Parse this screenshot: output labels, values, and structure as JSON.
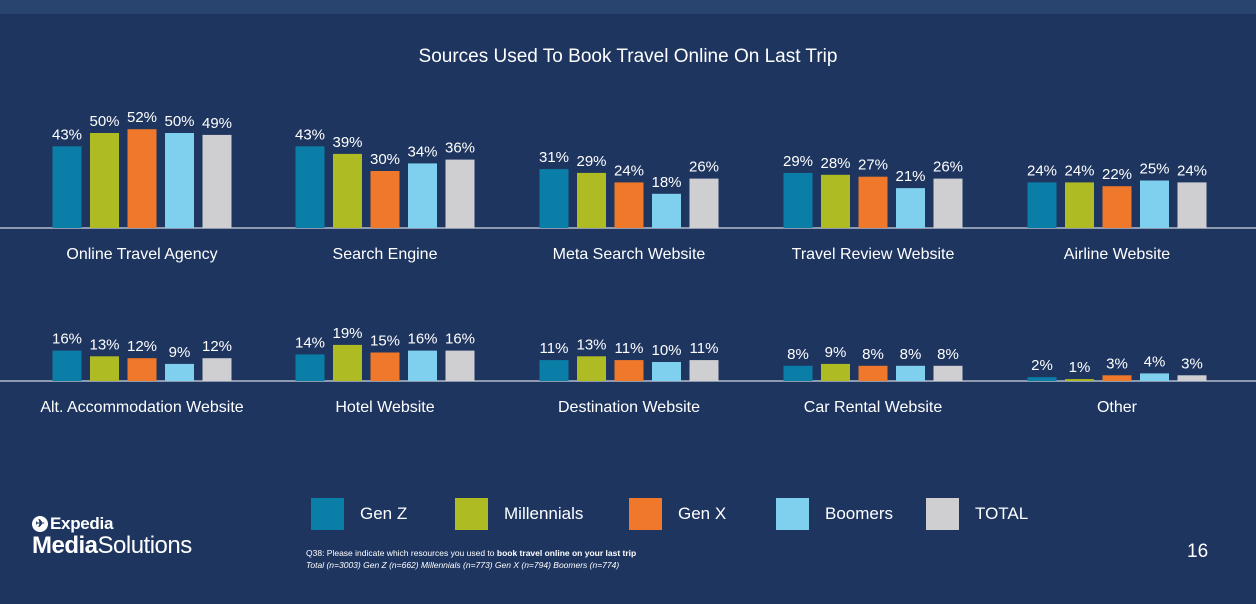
{
  "title": "Sources Used To Book Travel Online On Last Trip",
  "colors": {
    "background": "#1e3560",
    "Gen Z": "#0a7ea6",
    "Millennials": "#afbb22",
    "Gen X": "#f0782a",
    "Boomers": "#7fd0ef",
    "TOTAL": "#cfcfd1"
  },
  "legend": [
    "Gen Z",
    "Millennials",
    "Gen X",
    "Boomers",
    "TOTAL"
  ],
  "chart_data": {
    "type": "bar",
    "series_names": [
      "Gen Z",
      "Millennials",
      "Gen X",
      "Boomers",
      "TOTAL"
    ],
    "groups": [
      {
        "label": "Online Travel Agency",
        "values": [
          43,
          50,
          52,
          50,
          49
        ],
        "labels": [
          "43%",
          "50%",
          "52%",
          "50%",
          "49%"
        ]
      },
      {
        "label": "Search Engine",
        "values": [
          43,
          39,
          30,
          34,
          36
        ],
        "labels": [
          "43%",
          "39%",
          "30%",
          "34%",
          "36%"
        ]
      },
      {
        "label": "Meta Search Website",
        "values": [
          31,
          29,
          24,
          18,
          26
        ],
        "labels": [
          "31%",
          "29%",
          "24%",
          "18%",
          "26%"
        ]
      },
      {
        "label": "Travel Review Website",
        "values": [
          29,
          28,
          27,
          21,
          26
        ],
        "labels": [
          "29%",
          "28%",
          "27%",
          "21%",
          "26%"
        ]
      },
      {
        "label": "Airline Website",
        "values": [
          24,
          24,
          22,
          25,
          24
        ],
        "labels": [
          "24%",
          "24%",
          "22%",
          "25%",
          "24%"
        ]
      },
      {
        "label": "Alt. Accommodation Website",
        "values": [
          16,
          13,
          12,
          9,
          12
        ],
        "labels": [
          "16%",
          "13%",
          "12%",
          "9%",
          "12%"
        ]
      },
      {
        "label": "Hotel Website",
        "values": [
          14,
          19,
          15,
          16,
          16
        ],
        "labels": [
          "14%",
          "19%",
          "15%",
          "16%",
          "16%"
        ]
      },
      {
        "label": "Destination Website",
        "values": [
          11,
          13,
          11,
          10,
          11
        ],
        "labels": [
          "11%",
          "13%",
          "11%",
          "10%",
          "11%"
        ]
      },
      {
        "label": "Car Rental Website",
        "values": [
          8,
          9,
          8,
          8,
          8
        ],
        "labels": [
          "8%",
          "9%",
          "8%",
          "8%",
          "8%"
        ]
      },
      {
        "label": "Other",
        "values": [
          2,
          1,
          3,
          4,
          3
        ],
        "labels": [
          "2%",
          "1%",
          "3%",
          "4%",
          "3%"
        ]
      }
    ]
  },
  "logo": {
    "brand": "Expedia",
    "line2_bold": "Media",
    "line2_rest": "Solutions"
  },
  "footnote": {
    "question_prefix": "Q38: Please indicate which resources you used to ",
    "question_bold": "book travel online on your last trip",
    "sample": "Total (n=3003) Gen Z (n=662) Millennials (n=773) Gen X (n=794) Boomers (n=774)"
  },
  "page_number": "16"
}
